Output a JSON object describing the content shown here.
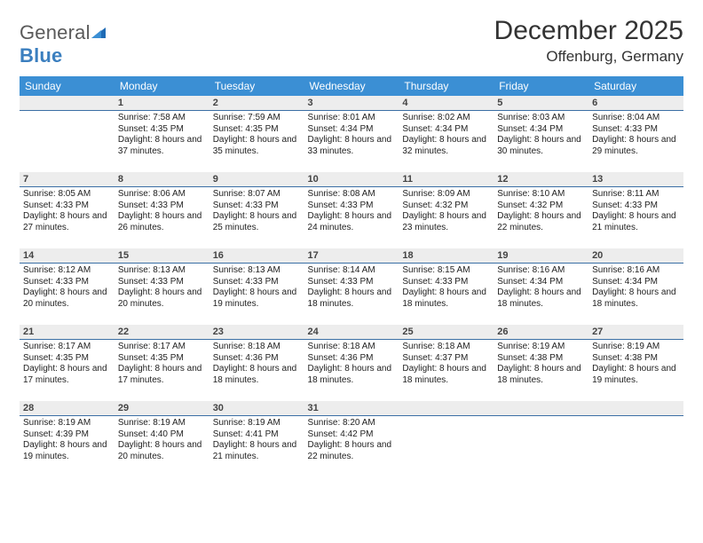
{
  "logo": {
    "word1": "General",
    "word2": "Blue"
  },
  "title": "December 2025",
  "location": "Offenburg, Germany",
  "colors": {
    "header_bg": "#3b8fd4",
    "header_text": "#ffffff",
    "daynum_bg": "#ededed",
    "daynum_border": "#3b6fa5",
    "logo_gray": "#5a5a5a",
    "logo_blue": "#3b7fbf",
    "text": "#222222",
    "page_bg": "#ffffff"
  },
  "typography": {
    "title_fontsize": 30,
    "location_fontsize": 17,
    "dayheader_fontsize": 12,
    "body_fontsize": 10,
    "daynum_fontsize": 11
  },
  "day_headers": [
    "Sunday",
    "Monday",
    "Tuesday",
    "Wednesday",
    "Thursday",
    "Friday",
    "Saturday"
  ],
  "weeks": [
    [
      {
        "num": "",
        "sunrise": "",
        "sunset": "",
        "daylight": ""
      },
      {
        "num": "1",
        "sunrise": "Sunrise: 7:58 AM",
        "sunset": "Sunset: 4:35 PM",
        "daylight": "Daylight: 8 hours and 37 minutes."
      },
      {
        "num": "2",
        "sunrise": "Sunrise: 7:59 AM",
        "sunset": "Sunset: 4:35 PM",
        "daylight": "Daylight: 8 hours and 35 minutes."
      },
      {
        "num": "3",
        "sunrise": "Sunrise: 8:01 AM",
        "sunset": "Sunset: 4:34 PM",
        "daylight": "Daylight: 8 hours and 33 minutes."
      },
      {
        "num": "4",
        "sunrise": "Sunrise: 8:02 AM",
        "sunset": "Sunset: 4:34 PM",
        "daylight": "Daylight: 8 hours and 32 minutes."
      },
      {
        "num": "5",
        "sunrise": "Sunrise: 8:03 AM",
        "sunset": "Sunset: 4:34 PM",
        "daylight": "Daylight: 8 hours and 30 minutes."
      },
      {
        "num": "6",
        "sunrise": "Sunrise: 8:04 AM",
        "sunset": "Sunset: 4:33 PM",
        "daylight": "Daylight: 8 hours and 29 minutes."
      }
    ],
    [
      {
        "num": "7",
        "sunrise": "Sunrise: 8:05 AM",
        "sunset": "Sunset: 4:33 PM",
        "daylight": "Daylight: 8 hours and 27 minutes."
      },
      {
        "num": "8",
        "sunrise": "Sunrise: 8:06 AM",
        "sunset": "Sunset: 4:33 PM",
        "daylight": "Daylight: 8 hours and 26 minutes."
      },
      {
        "num": "9",
        "sunrise": "Sunrise: 8:07 AM",
        "sunset": "Sunset: 4:33 PM",
        "daylight": "Daylight: 8 hours and 25 minutes."
      },
      {
        "num": "10",
        "sunrise": "Sunrise: 8:08 AM",
        "sunset": "Sunset: 4:33 PM",
        "daylight": "Daylight: 8 hours and 24 minutes."
      },
      {
        "num": "11",
        "sunrise": "Sunrise: 8:09 AM",
        "sunset": "Sunset: 4:32 PM",
        "daylight": "Daylight: 8 hours and 23 minutes."
      },
      {
        "num": "12",
        "sunrise": "Sunrise: 8:10 AM",
        "sunset": "Sunset: 4:32 PM",
        "daylight": "Daylight: 8 hours and 22 minutes."
      },
      {
        "num": "13",
        "sunrise": "Sunrise: 8:11 AM",
        "sunset": "Sunset: 4:33 PM",
        "daylight": "Daylight: 8 hours and 21 minutes."
      }
    ],
    [
      {
        "num": "14",
        "sunrise": "Sunrise: 8:12 AM",
        "sunset": "Sunset: 4:33 PM",
        "daylight": "Daylight: 8 hours and 20 minutes."
      },
      {
        "num": "15",
        "sunrise": "Sunrise: 8:13 AM",
        "sunset": "Sunset: 4:33 PM",
        "daylight": "Daylight: 8 hours and 20 minutes."
      },
      {
        "num": "16",
        "sunrise": "Sunrise: 8:13 AM",
        "sunset": "Sunset: 4:33 PM",
        "daylight": "Daylight: 8 hours and 19 minutes."
      },
      {
        "num": "17",
        "sunrise": "Sunrise: 8:14 AM",
        "sunset": "Sunset: 4:33 PM",
        "daylight": "Daylight: 8 hours and 18 minutes."
      },
      {
        "num": "18",
        "sunrise": "Sunrise: 8:15 AM",
        "sunset": "Sunset: 4:33 PM",
        "daylight": "Daylight: 8 hours and 18 minutes."
      },
      {
        "num": "19",
        "sunrise": "Sunrise: 8:16 AM",
        "sunset": "Sunset: 4:34 PM",
        "daylight": "Daylight: 8 hours and 18 minutes."
      },
      {
        "num": "20",
        "sunrise": "Sunrise: 8:16 AM",
        "sunset": "Sunset: 4:34 PM",
        "daylight": "Daylight: 8 hours and 18 minutes."
      }
    ],
    [
      {
        "num": "21",
        "sunrise": "Sunrise: 8:17 AM",
        "sunset": "Sunset: 4:35 PM",
        "daylight": "Daylight: 8 hours and 17 minutes."
      },
      {
        "num": "22",
        "sunrise": "Sunrise: 8:17 AM",
        "sunset": "Sunset: 4:35 PM",
        "daylight": "Daylight: 8 hours and 17 minutes."
      },
      {
        "num": "23",
        "sunrise": "Sunrise: 8:18 AM",
        "sunset": "Sunset: 4:36 PM",
        "daylight": "Daylight: 8 hours and 18 minutes."
      },
      {
        "num": "24",
        "sunrise": "Sunrise: 8:18 AM",
        "sunset": "Sunset: 4:36 PM",
        "daylight": "Daylight: 8 hours and 18 minutes."
      },
      {
        "num": "25",
        "sunrise": "Sunrise: 8:18 AM",
        "sunset": "Sunset: 4:37 PM",
        "daylight": "Daylight: 8 hours and 18 minutes."
      },
      {
        "num": "26",
        "sunrise": "Sunrise: 8:19 AM",
        "sunset": "Sunset: 4:38 PM",
        "daylight": "Daylight: 8 hours and 18 minutes."
      },
      {
        "num": "27",
        "sunrise": "Sunrise: 8:19 AM",
        "sunset": "Sunset: 4:38 PM",
        "daylight": "Daylight: 8 hours and 19 minutes."
      }
    ],
    [
      {
        "num": "28",
        "sunrise": "Sunrise: 8:19 AM",
        "sunset": "Sunset: 4:39 PM",
        "daylight": "Daylight: 8 hours and 19 minutes."
      },
      {
        "num": "29",
        "sunrise": "Sunrise: 8:19 AM",
        "sunset": "Sunset: 4:40 PM",
        "daylight": "Daylight: 8 hours and 20 minutes."
      },
      {
        "num": "30",
        "sunrise": "Sunrise: 8:19 AM",
        "sunset": "Sunset: 4:41 PM",
        "daylight": "Daylight: 8 hours and 21 minutes."
      },
      {
        "num": "31",
        "sunrise": "Sunrise: 8:20 AM",
        "sunset": "Sunset: 4:42 PM",
        "daylight": "Daylight: 8 hours and 22 minutes."
      },
      {
        "num": "",
        "sunrise": "",
        "sunset": "",
        "daylight": ""
      },
      {
        "num": "",
        "sunrise": "",
        "sunset": "",
        "daylight": ""
      },
      {
        "num": "",
        "sunrise": "",
        "sunset": "",
        "daylight": ""
      }
    ]
  ]
}
